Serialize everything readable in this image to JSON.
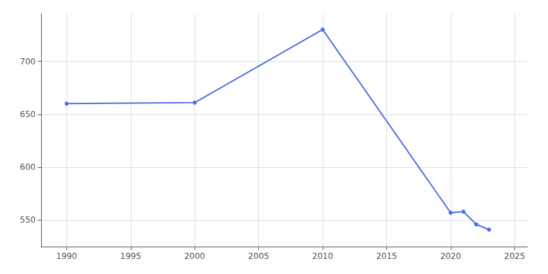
{
  "chart_data": {
    "type": "line",
    "x": [
      1990,
      2000,
      2010,
      2020,
      2021,
      2022,
      2023
    ],
    "values": [
      660,
      661,
      730,
      557,
      558,
      546,
      541
    ],
    "xlim": [
      1988,
      2026
    ],
    "xticks": [
      1990,
      1995,
      2000,
      2005,
      2010,
      2015,
      2020,
      2025
    ],
    "ylim": [
      525,
      745
    ],
    "yticks": [
      550,
      600,
      650,
      700
    ],
    "grid": true,
    "marker": "circle"
  }
}
